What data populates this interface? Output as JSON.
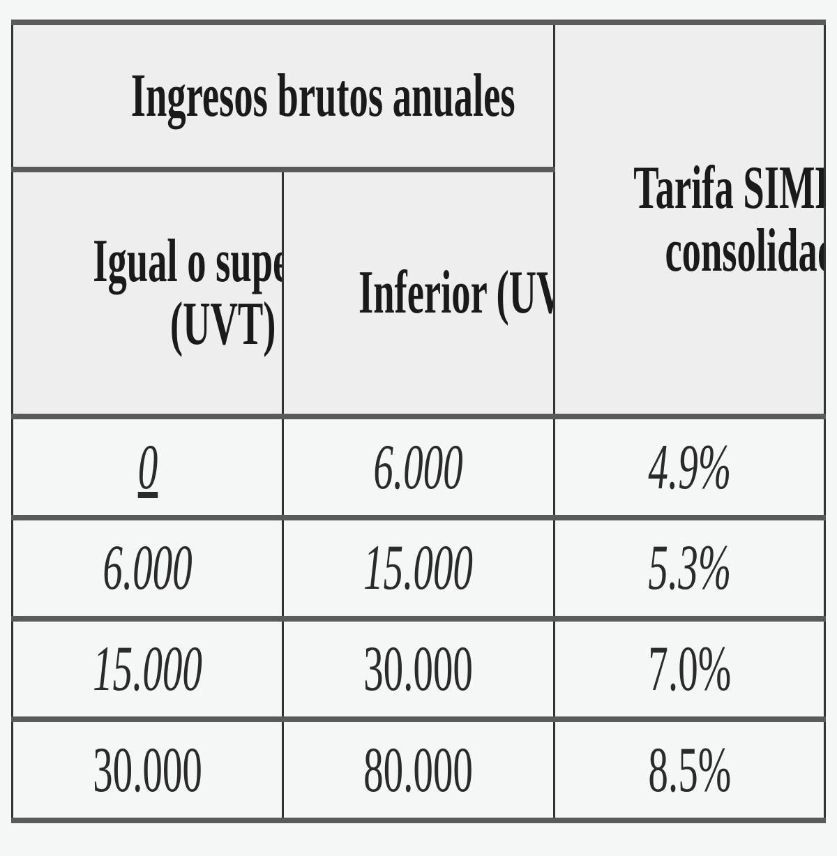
{
  "table": {
    "header": {
      "group_label": "Ingresos brutos anuales",
      "col_lower_line1": "Igual o superior",
      "col_lower_line2": "(UVT)",
      "col_upper": "Inferior (UVT)",
      "col_rate_line1": "Tarifa SIMPLE",
      "col_rate_line2": "consolidada"
    },
    "rows": [
      {
        "lower": "0",
        "upper": "6.000",
        "rate": "4.9%"
      },
      {
        "lower": "6.000",
        "upper": "15.000",
        "rate": "5.3%"
      },
      {
        "lower": "15.000",
        "upper": "30.000",
        "rate": "7.0%"
      },
      {
        "lower": "30.000",
        "upper": "80.000",
        "rate": "8.5%"
      }
    ]
  }
}
